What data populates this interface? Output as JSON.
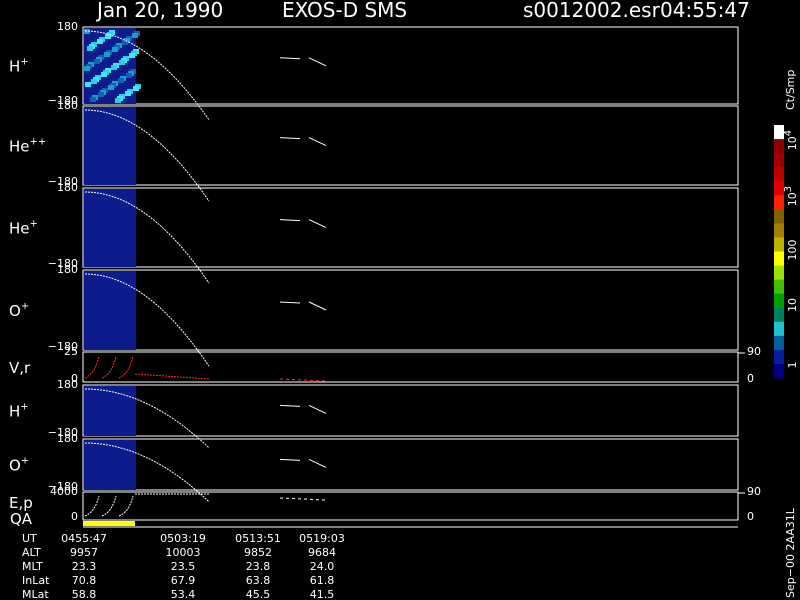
{
  "header": {
    "date": "Jan 20, 1990",
    "instrument": "EXOS-D SMS",
    "file": "s0012002.esr",
    "time": "04:55:47"
  },
  "panels": [
    {
      "label": "H",
      "sup": "+",
      "ytop": "180",
      "ybottom": "−180"
    },
    {
      "label": "He",
      "sup": "++",
      "ytop": "180",
      "ybottom": "−180"
    },
    {
      "label": "He",
      "sup": "+",
      "ytop": "180",
      "ybottom": "−180"
    },
    {
      "label": "O",
      "sup": "+",
      "ytop": "180",
      "ybottom": "−180"
    },
    {
      "label": "V,r",
      "sup": "",
      "ytop": "25",
      "ybottom": "0",
      "rtop": "90",
      "rbottom": "0"
    },
    {
      "label": "H",
      "sup": "+",
      "ytop": "180",
      "ybottom": "−180"
    },
    {
      "label": "O",
      "sup": "+",
      "ytop": "180",
      "ybottom": "−180"
    },
    {
      "label": "E,p",
      "sup": "",
      "ytop": "4000",
      "ybottom": "0",
      "rtop": "90",
      "rbottom": "0"
    }
  ],
  "qa_label": "QA",
  "colorbar": {
    "unit": "Ct/Smp",
    "labels": [
      {
        "base": "10",
        "sup": "4"
      },
      {
        "base": "10",
        "sup": "3"
      },
      {
        "base": "100",
        "sup": ""
      },
      {
        "base": "10",
        "sup": ""
      },
      {
        "base": "1",
        "sup": ""
      }
    ]
  },
  "time_table": {
    "rows": [
      [
        "UT",
        "0455:47",
        "0503:19",
        "0513:51",
        "0519:03"
      ],
      [
        "ALT",
        "9957",
        "10003",
        "9852",
        "9684"
      ],
      [
        "MLT",
        "23.3",
        "23.5",
        "23.8",
        "24.0"
      ],
      [
        "InLat",
        "70.8",
        "67.9",
        "63.8",
        "61.8"
      ],
      [
        "MLat",
        "58.8",
        "53.4",
        "45.5",
        "41.5"
      ]
    ]
  },
  "footer": "Sep−00 2AA31L"
}
